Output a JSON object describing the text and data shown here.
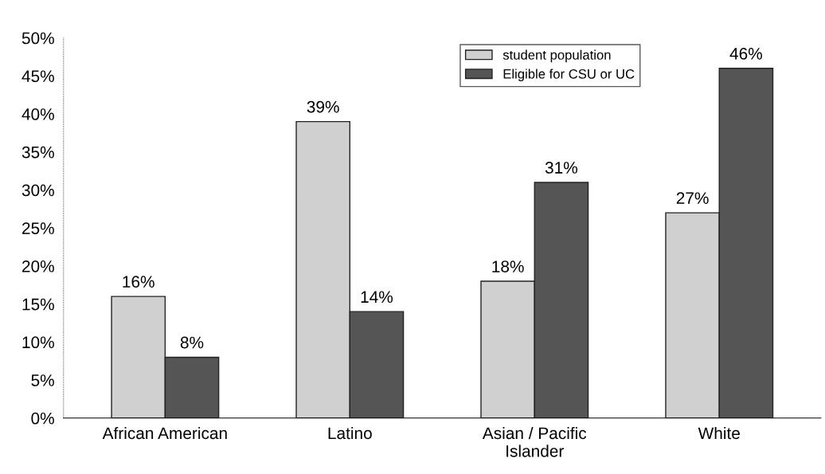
{
  "chart_data": {
    "type": "bar",
    "categories": [
      "African American",
      "Latino",
      "Asian / Pacific\nIslander",
      "White"
    ],
    "series": [
      {
        "name": "student population",
        "color": "#d0d0d0",
        "values": [
          16,
          39,
          18,
          27
        ],
        "value_labels": [
          "16%",
          "39%",
          "18%",
          "27%"
        ]
      },
      {
        "name": "Eligible for CSU or UC",
        "color": "#555555",
        "values": [
          8,
          14,
          31,
          46
        ],
        "value_labels": [
          "8%",
          "14%",
          "31%",
          "46%"
        ]
      }
    ],
    "ylim": [
      0,
      50
    ],
    "yticks": [
      {
        "value": 0,
        "label": "0%"
      },
      {
        "value": 5,
        "label": "5%"
      },
      {
        "value": 10,
        "label": "10%"
      },
      {
        "value": 15,
        "label": "15%"
      },
      {
        "value": 20,
        "label": "20%"
      },
      {
        "value": 25,
        "label": "25%"
      },
      {
        "value": 30,
        "label": "30%"
      },
      {
        "value": 35,
        "label": "35%"
      },
      {
        "value": 40,
        "label": "40%"
      },
      {
        "value": 45,
        "label": "45%"
      },
      {
        "value": 50,
        "label": "50%"
      }
    ],
    "grid": false,
    "legend": "top right"
  }
}
